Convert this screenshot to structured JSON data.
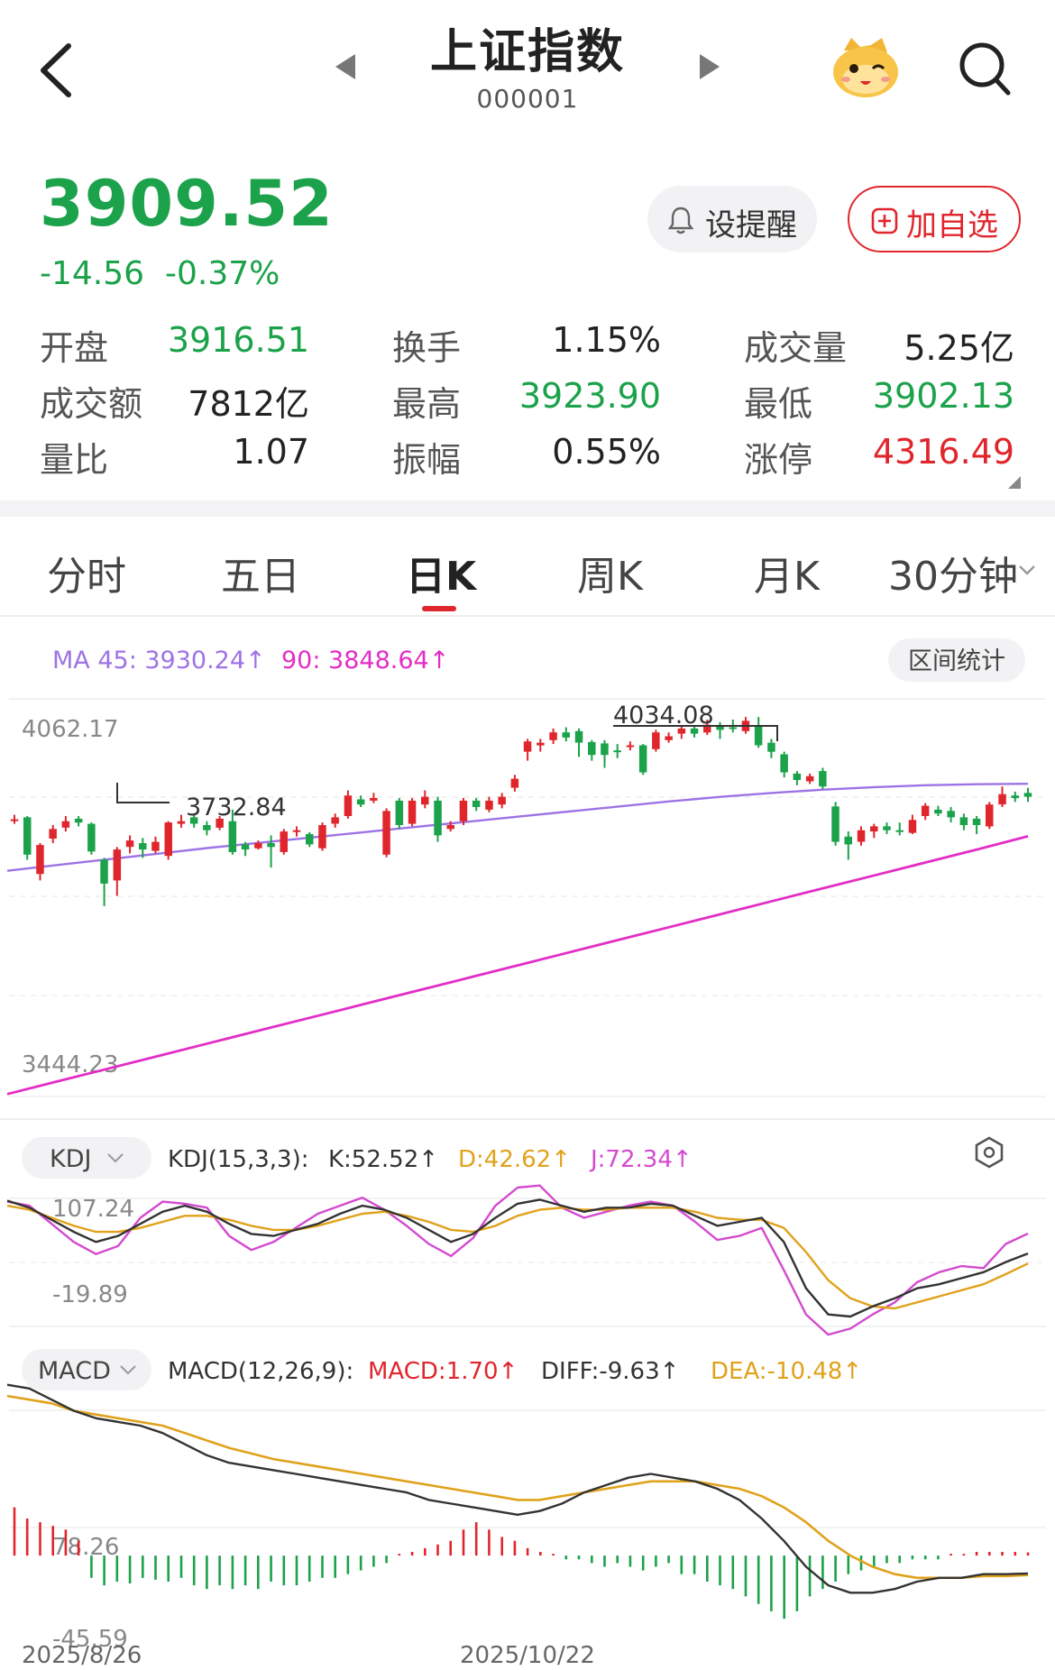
{
  "header": {
    "title": "上证指数",
    "code": "000001"
  },
  "quote": {
    "price": "3909.52",
    "change": "-14.56",
    "change_pct": "-0.37%",
    "alert_label": "设提醒",
    "add_label": "加自选"
  },
  "stats": [
    {
      "label": "开盘",
      "value": "3916.51",
      "tone": "green"
    },
    {
      "label": "换手",
      "value": "1.15%",
      "tone": "neutral"
    },
    {
      "label": "成交量",
      "value": "5.25亿",
      "tone": "neutral"
    },
    {
      "label": "成交额",
      "value": "7812亿",
      "tone": "neutral"
    },
    {
      "label": "最高",
      "value": "3923.90",
      "tone": "green"
    },
    {
      "label": "最低",
      "value": "3902.13",
      "tone": "green"
    },
    {
      "label": "量比",
      "value": "1.07",
      "tone": "neutral"
    },
    {
      "label": "振幅",
      "value": "0.55%",
      "tone": "neutral"
    },
    {
      "label": "涨停",
      "value": "4316.49",
      "tone": "red"
    }
  ],
  "tabs": [
    {
      "label": "分时",
      "active": false
    },
    {
      "label": "五日",
      "active": false
    },
    {
      "label": "日K",
      "active": true
    },
    {
      "label": "周K",
      "active": false
    },
    {
      "label": "月K",
      "active": false
    },
    {
      "label": "30分钟",
      "active": false
    }
  ],
  "chart_data": {
    "type": "candlestick",
    "colors": {
      "up": "#e0262d",
      "down": "#1ba24a",
      "ma45": "#9d73e6",
      "ma90": "#e22ec6",
      "kdj_k": "#333333",
      "kdj_d": "#e0a21b",
      "kdj_j": "#d44ad0",
      "dea": "#e0a21b",
      "diff": "#333333"
    },
    "ma_legend": {
      "ma45": "MA 45: 3930.24↑",
      "ma90": "90: 3848.64↑"
    },
    "range_stat_label": "区间统计",
    "main_axis": {
      "top_label": "4062.17",
      "bottom_label": "3444.23",
      "ylim": [
        3444.23,
        4062.17
      ]
    },
    "annotations": {
      "high": "4034.08",
      "low": "3732.84"
    },
    "candles": [
      {
        "o": 3875,
        "c": 3875,
        "h": 3882,
        "l": 3868
      },
      {
        "o": 3878,
        "c": 3820,
        "h": 3880,
        "l": 3812
      },
      {
        "o": 3790,
        "c": 3835,
        "h": 3838,
        "l": 3780
      },
      {
        "o": 3845,
        "c": 3860,
        "h": 3866,
        "l": 3838
      },
      {
        "o": 3862,
        "c": 3872,
        "h": 3880,
        "l": 3856
      },
      {
        "o": 3876,
        "c": 3870,
        "h": 3880,
        "l": 3864
      },
      {
        "o": 3868,
        "c": 3825,
        "h": 3870,
        "l": 3820
      },
      {
        "o": 3812,
        "c": 3775,
        "h": 3815,
        "l": 3740
      },
      {
        "o": 3780,
        "c": 3828,
        "h": 3832,
        "l": 3756
      },
      {
        "o": 3832,
        "c": 3842,
        "h": 3850,
        "l": 3822
      },
      {
        "o": 3838,
        "c": 3828,
        "h": 3846,
        "l": 3815
      },
      {
        "o": 3826,
        "c": 3840,
        "h": 3848,
        "l": 3822
      },
      {
        "o": 3818,
        "c": 3870,
        "h": 3872,
        "l": 3812
      },
      {
        "o": 3868,
        "c": 3872,
        "h": 3882,
        "l": 3862
      },
      {
        "o": 3878,
        "c": 3868,
        "h": 3884,
        "l": 3862
      },
      {
        "o": 3866,
        "c": 3858,
        "h": 3872,
        "l": 3850
      },
      {
        "o": 3862,
        "c": 3876,
        "h": 3880,
        "l": 3858
      },
      {
        "o": 3872,
        "c": 3824,
        "h": 3890,
        "l": 3820
      },
      {
        "o": 3836,
        "c": 3828,
        "h": 3840,
        "l": 3818
      },
      {
        "o": 3830,
        "c": 3838,
        "h": 3842,
        "l": 3828
      },
      {
        "o": 3838,
        "c": 3832,
        "h": 3850,
        "l": 3800
      },
      {
        "o": 3824,
        "c": 3856,
        "h": 3860,
        "l": 3820
      },
      {
        "o": 3856,
        "c": 3858,
        "h": 3864,
        "l": 3848
      },
      {
        "o": 3852,
        "c": 3836,
        "h": 3855,
        "l": 3832
      },
      {
        "o": 3830,
        "c": 3866,
        "h": 3870,
        "l": 3826
      },
      {
        "o": 3868,
        "c": 3878,
        "h": 3884,
        "l": 3862
      },
      {
        "o": 3880,
        "c": 3912,
        "h": 3920,
        "l": 3876
      },
      {
        "o": 3906,
        "c": 3898,
        "h": 3912,
        "l": 3894
      },
      {
        "o": 3904,
        "c": 3908,
        "h": 3916,
        "l": 3900
      },
      {
        "o": 3820,
        "c": 3888,
        "h": 3892,
        "l": 3816
      },
      {
        "o": 3904,
        "c": 3866,
        "h": 3908,
        "l": 3860
      },
      {
        "o": 3868,
        "c": 3904,
        "h": 3908,
        "l": 3864
      },
      {
        "o": 3898,
        "c": 3910,
        "h": 3920,
        "l": 3892
      },
      {
        "o": 3904,
        "c": 3850,
        "h": 3910,
        "l": 3840
      },
      {
        "o": 3860,
        "c": 3866,
        "h": 3872,
        "l": 3856
      },
      {
        "o": 3872,
        "c": 3904,
        "h": 3908,
        "l": 3866
      },
      {
        "o": 3904,
        "c": 3894,
        "h": 3908,
        "l": 3888
      },
      {
        "o": 3890,
        "c": 3904,
        "h": 3910,
        "l": 3886
      },
      {
        "o": 3898,
        "c": 3910,
        "h": 3916,
        "l": 3892
      },
      {
        "o": 3924,
        "c": 3938,
        "h": 3944,
        "l": 3918
      },
      {
        "o": 3980,
        "c": 3996,
        "h": 4000,
        "l": 3966
      },
      {
        "o": 3990,
        "c": 3994,
        "h": 4000,
        "l": 3980
      },
      {
        "o": 3998,
        "c": 4010,
        "h": 4016,
        "l": 3992
      },
      {
        "o": 4010,
        "c": 4002,
        "h": 4018,
        "l": 3996
      },
      {
        "o": 4012,
        "c": 3994,
        "h": 4016,
        "l": 3972
      },
      {
        "o": 3995,
        "c": 3975,
        "h": 3998,
        "l": 3966
      },
      {
        "o": 3993,
        "c": 3975,
        "h": 3998,
        "l": 3955
      },
      {
        "o": 3982,
        "c": 3980,
        "h": 3992,
        "l": 3970
      },
      {
        "o": 3988,
        "c": 3990,
        "h": 3996,
        "l": 3982
      },
      {
        "o": 3990,
        "c": 3948,
        "h": 3992,
        "l": 3944
      },
      {
        "o": 3984,
        "c": 4010,
        "h": 4014,
        "l": 3980
      },
      {
        "o": 3998,
        "c": 4004,
        "h": 4010,
        "l": 3994
      },
      {
        "o": 4008,
        "c": 4016,
        "h": 4020,
        "l": 4000
      },
      {
        "o": 4016,
        "c": 4008,
        "h": 4020,
        "l": 4002
      },
      {
        "o": 4010,
        "c": 4022,
        "h": 4030,
        "l": 4006
      },
      {
        "o": 4020,
        "c": 4014,
        "h": 4026,
        "l": 4000
      },
      {
        "o": 4018,
        "c": 4016,
        "h": 4030,
        "l": 4010
      },
      {
        "o": 4012,
        "c": 4028,
        "h": 4034,
        "l": 4008
      },
      {
        "o": 4020,
        "c": 3990,
        "h": 4034,
        "l": 3986
      },
      {
        "o": 3994,
        "c": 3980,
        "h": 4000,
        "l": 3970
      },
      {
        "o": 3976,
        "c": 3948,
        "h": 3980,
        "l": 3940
      },
      {
        "o": 3946,
        "c": 3936,
        "h": 3950,
        "l": 3928
      },
      {
        "o": 3934,
        "c": 3942,
        "h": 3946,
        "l": 3930
      },
      {
        "o": 3950,
        "c": 3926,
        "h": 3955,
        "l": 3922
      },
      {
        "o": 3895,
        "c": 3840,
        "h": 3902,
        "l": 3834
      },
      {
        "o": 3848,
        "c": 3836,
        "h": 3856,
        "l": 3812
      },
      {
        "o": 3840,
        "c": 3858,
        "h": 3864,
        "l": 3834
      },
      {
        "o": 3856,
        "c": 3864,
        "h": 3868,
        "l": 3846
      },
      {
        "o": 3864,
        "c": 3858,
        "h": 3870,
        "l": 3852
      },
      {
        "o": 3858,
        "c": 3856,
        "h": 3870,
        "l": 3850
      },
      {
        "o": 3854,
        "c": 3874,
        "h": 3882,
        "l": 3852
      },
      {
        "o": 3880,
        "c": 3896,
        "h": 3900,
        "l": 3874
      },
      {
        "o": 3890,
        "c": 3884,
        "h": 3896,
        "l": 3880
      },
      {
        "o": 3888,
        "c": 3878,
        "h": 3894,
        "l": 3870
      },
      {
        "o": 3878,
        "c": 3866,
        "h": 3884,
        "l": 3858
      },
      {
        "o": 3876,
        "c": 3866,
        "h": 3880,
        "l": 3852
      },
      {
        "o": 3864,
        "c": 3898,
        "h": 3902,
        "l": 3860
      },
      {
        "o": 3898,
        "c": 3914,
        "h": 3926,
        "l": 3894
      },
      {
        "o": 3912,
        "c": 3908,
        "h": 3918,
        "l": 3902
      },
      {
        "o": 3916,
        "c": 3910,
        "h": 3924,
        "l": 3902
      }
    ],
    "ma45": [
      3795,
      3804,
      3813,
      3822,
      3831,
      3839,
      3847,
      3855,
      3863,
      3871,
      3879,
      3887,
      3895,
      3903,
      3910,
      3916,
      3921,
      3925,
      3928,
      3929.5,
      3930.24
    ],
    "ma90": [
      3448,
      3468,
      3488,
      3508,
      3528,
      3548,
      3568,
      3588,
      3608,
      3628,
      3648,
      3668,
      3688,
      3708,
      3728,
      3748,
      3768,
      3788,
      3808,
      3828,
      3848.64
    ],
    "kdj": {
      "indicator_label": "KDJ",
      "params_label": "KDJ(15,3,3):",
      "k_label": "K:52.52↑",
      "d_label": "D:42.62↑",
      "j_label": "J:72.34↑",
      "axis_top": "107.24",
      "axis_bottom": "-19.89",
      "ylim": [
        -19.89,
        107.24
      ],
      "k": [
        105,
        98,
        86,
        74,
        64,
        70,
        82,
        94,
        100,
        94,
        82,
        72,
        70,
        76,
        82,
        92,
        100,
        96,
        88,
        76,
        64,
        72,
        88,
        102,
        106,
        100,
        94,
        98,
        98,
        102,
        100,
        90,
        80,
        84,
        88,
        64,
        18,
        -8,
        -10,
        0,
        8,
        18,
        22,
        28,
        34,
        44,
        52.52
      ],
      "d": [
        100,
        96,
        88,
        80,
        74,
        74,
        78,
        84,
        90,
        90,
        86,
        80,
        76,
        76,
        80,
        86,
        92,
        94,
        90,
        84,
        76,
        74,
        80,
        90,
        96,
        98,
        96,
        96,
        98,
        98,
        98,
        94,
        88,
        86,
        86,
        78,
        54,
        26,
        8,
        0,
        -2,
        4,
        10,
        16,
        22,
        32,
        42.62
      ],
      "j": [
        104,
        100,
        82,
        64,
        52,
        60,
        88,
        104,
        102,
        98,
        70,
        56,
        64,
        78,
        92,
        100,
        108,
        96,
        80,
        62,
        50,
        68,
        100,
        118,
        120,
        98,
        88,
        94,
        100,
        104,
        100,
        84,
        66,
        70,
        78,
        36,
        -8,
        -28,
        -22,
        -8,
        4,
        24,
        34,
        40,
        38,
        62,
        72.34
      ]
    },
    "macd": {
      "indicator_label": "MACD",
      "params_label": "MACD(12,26,9):",
      "macd_label": "MACD:1.70↑",
      "diff_label": "DIFF:-9.63↑",
      "dea_label": "DEA:-10.48↑",
      "axis_top": "78.26",
      "axis_bottom": "-45.59",
      "ylim": [
        -45.59,
        78.26
      ],
      "diff": [
        92,
        90,
        84,
        78,
        74,
        72,
        70,
        66,
        60,
        54,
        50,
        48,
        46,
        44,
        42,
        40,
        38,
        36,
        34,
        30,
        28,
        26,
        24,
        22,
        24,
        28,
        34,
        38,
        42,
        44,
        42,
        40,
        36,
        30,
        20,
        8,
        -6,
        -16,
        -20,
        -20,
        -18,
        -14,
        -12,
        -12,
        -10,
        -10,
        -9.63
      ],
      "dea": [
        86,
        84,
        82,
        78,
        76,
        74,
        72,
        70,
        66,
        62,
        58,
        55,
        52,
        50,
        48,
        46,
        44,
        42,
        40,
        38,
        36,
        34,
        32,
        30,
        30,
        32,
        34,
        36,
        38,
        40,
        40,
        40,
        38,
        36,
        32,
        26,
        18,
        8,
        0,
        -6,
        -10,
        -12,
        -12,
        -12,
        -11,
        -11,
        -10.48
      ],
      "hist": [
        26,
        20,
        18,
        16,
        14,
        8,
        -12,
        -16,
        -14,
        -15,
        -12,
        -13,
        -14,
        -12,
        -16,
        -18,
        -16,
        -18,
        -16,
        -18,
        -14,
        -16,
        -16,
        -14,
        -12,
        -12,
        -10,
        -8,
        -6,
        -4,
        0,
        2,
        4,
        6,
        8,
        14,
        18,
        14,
        10,
        8,
        4,
        2,
        0,
        -2,
        -2,
        -4,
        -6,
        -4,
        -6,
        -8,
        -6,
        -4,
        -10,
        -10,
        -14,
        -16,
        -18,
        -22,
        -26,
        -30,
        -34,
        -30,
        -22,
        -18,
        -14,
        -10,
        -8,
        -6,
        -4,
        -4,
        -2,
        -2,
        -2,
        0,
        0,
        2,
        2,
        2,
        2,
        1.7
      ]
    },
    "x_labels": [
      "2025/8/26",
      "2025/10/22"
    ]
  }
}
